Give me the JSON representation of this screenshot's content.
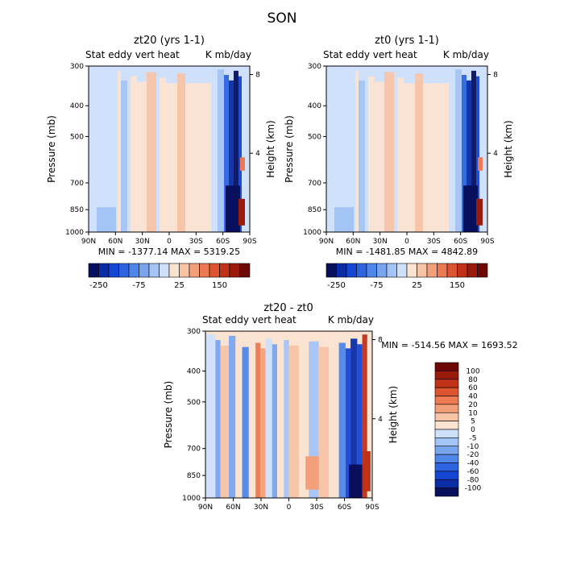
{
  "figure": {
    "title": "SON"
  },
  "panels": [
    {
      "id": "zt20",
      "title": "zt20 (yrs 1-1)",
      "subtitle_left": "Stat eddy vert heat",
      "subtitle_right": "K mb/day",
      "ylabel": "Pressure (mb)",
      "y2label": "Height (km)",
      "minmax": "MIN = -1377.14   MAX = 5319.25"
    },
    {
      "id": "zt0",
      "title": "zt0 (yrs 1-1)",
      "subtitle_left": "Stat eddy vert heat",
      "subtitle_right": "K mb/day",
      "ylabel": "Pressure (mb)",
      "y2label": "Height (km)",
      "minmax": "MIN = -1481.85   MAX = 4842.89"
    },
    {
      "id": "diff",
      "title": "zt20 - zt0",
      "subtitle_left": "Stat eddy vert heat",
      "subtitle_right": "K mb/day",
      "ylabel": "Pressure (mb)",
      "y2label": "Height (km)",
      "minmax": "MIN = -514.56   MAX = 1693.52"
    }
  ],
  "colorbar_top": {
    "colors": [
      "#08105e",
      "#0a2ca6",
      "#1546d4",
      "#2e64e0",
      "#4f86ea",
      "#79a5ef",
      "#a4c4f5",
      "#cfe0fb",
      "#fbe3d2",
      "#f7c4a6",
      "#f3a07a",
      "#ec7a52",
      "#dc5530",
      "#c03218",
      "#9a1a0c",
      "#6e0806"
    ],
    "labels": [
      {
        "text": "-250",
        "edge": 1
      },
      {
        "text": "-75",
        "edge": 5
      },
      {
        "text": "25",
        "edge": 9
      },
      {
        "text": "150",
        "edge": 13
      }
    ]
  },
  "colorbar_diff": {
    "colors": [
      "#6e0806",
      "#9a1a0c",
      "#c03218",
      "#dc5530",
      "#ec7a52",
      "#f3a07a",
      "#f7c4a6",
      "#fbe3d2",
      "#cfe0fb",
      "#a4c4f5",
      "#79a5ef",
      "#4f86ea",
      "#2e64e0",
      "#1546d4",
      "#0a2ca6",
      "#08105e"
    ],
    "labels": [
      "100",
      "80",
      "60",
      "40",
      "20",
      "10",
      "5",
      "0",
      "-5",
      "-10",
      "-20",
      "-40",
      "-60",
      "-80",
      "-100"
    ]
  },
  "chart_data": [
    {
      "type": "heatmap",
      "title": "zt20 (yrs 1-1)",
      "xlabel": "",
      "ylabel": "Pressure (mb)",
      "y2label": "Height (km)",
      "x_ticks": [
        "90N",
        "60N",
        "30N",
        "0",
        "30S",
        "60S",
        "90S"
      ],
      "y_ticks": [
        300,
        400,
        500,
        700,
        850,
        1000
      ],
      "y2_ticks": [
        8,
        4
      ],
      "ylim": [
        1000,
        300
      ],
      "y_scale": "log",
      "color_levels": [
        -250,
        -75,
        25,
        150
      ],
      "min": -1377.14,
      "max": 5319.25,
      "lat_values_near_surface": [
        -20,
        -20,
        -15,
        -10,
        -5,
        8,
        15,
        25,
        20,
        10,
        5,
        0,
        5,
        10,
        -20,
        -150,
        -1377,
        150
      ],
      "lat_axis": [
        90,
        80,
        70,
        60,
        50,
        40,
        30,
        20,
        10,
        0,
        -10,
        -20,
        -30,
        -40,
        -50,
        -60,
        -70,
        -85
      ]
    },
    {
      "type": "heatmap",
      "title": "zt0 (yrs 1-1)",
      "xlabel": "",
      "ylabel": "Pressure (mb)",
      "y2label": "Height (km)",
      "x_ticks": [
        "90N",
        "60N",
        "30N",
        "0",
        "30S",
        "60S",
        "90S"
      ],
      "y_ticks": [
        300,
        400,
        500,
        700,
        850,
        1000
      ],
      "y2_ticks": [
        8,
        4
      ],
      "ylim": [
        1000,
        300
      ],
      "y_scale": "log",
      "color_levels": [
        -250,
        -75,
        25,
        150
      ],
      "min": -1481.85,
      "max": 4842.89,
      "lat_values_near_surface": [
        -20,
        -20,
        -15,
        -10,
        -5,
        8,
        15,
        25,
        20,
        10,
        5,
        0,
        5,
        10,
        -20,
        -150,
        -1481,
        150
      ],
      "lat_axis": [
        90,
        80,
        70,
        60,
        50,
        40,
        30,
        20,
        10,
        0,
        -10,
        -20,
        -30,
        -40,
        -50,
        -60,
        -70,
        -85
      ]
    },
    {
      "type": "heatmap",
      "title": "zt20 - zt0",
      "xlabel": "",
      "ylabel": "Pressure (mb)",
      "y2label": "Height (km)",
      "x_ticks": [
        "90N",
        "60N",
        "30N",
        "0",
        "30S",
        "60S",
        "90S"
      ],
      "y_ticks": [
        300,
        400,
        500,
        700,
        850,
        1000
      ],
      "y2_ticks": [
        8,
        4
      ],
      "ylim": [
        1000,
        300
      ],
      "y_scale": "log",
      "color_levels": [
        -100,
        -80,
        -60,
        -40,
        -20,
        -10,
        -5,
        0,
        5,
        10,
        20,
        40,
        60,
        80,
        100
      ],
      "min": -514.56,
      "max": 1693.52
    }
  ]
}
